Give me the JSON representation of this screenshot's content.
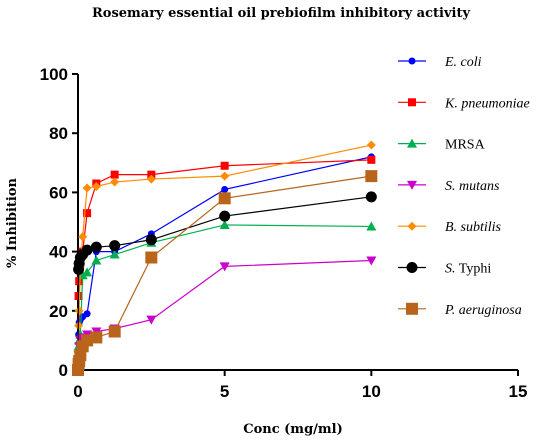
{
  "chart_data": {
    "type": "line",
    "title": "Rosemary essential oil prebiofilm inhibitory activity",
    "xlabel": "Conc (mg/ml)",
    "ylabel": "% Inhibition",
    "xlim": [
      0,
      15
    ],
    "ylim": [
      0,
      100
    ],
    "xticks": [
      0,
      5,
      10,
      15
    ],
    "yticks": [
      0,
      20,
      40,
      60,
      80,
      100
    ],
    "grid": false,
    "legend_position": "right",
    "series": [
      {
        "name": "E. coli",
        "name_parts": [
          {
            "text": "E. coli",
            "italic": true
          }
        ],
        "color": "#0000ff",
        "marker": "circle",
        "x": [
          0,
          0.02,
          0.04,
          0.08,
          0.16,
          0.31,
          0.625,
          1.25,
          2.5,
          5,
          10
        ],
        "y": [
          0,
          12,
          16,
          17,
          18,
          19,
          40,
          40,
          46,
          61,
          72
        ]
      },
      {
        "name": "K. pneumoniae",
        "name_parts": [
          {
            "text": "K. pneumoniae",
            "italic": true
          }
        ],
        "color": "#ff0000",
        "marker": "square",
        "x": [
          0,
          0.02,
          0.04,
          0.08,
          0.16,
          0.31,
          0.625,
          1.25,
          2.5,
          5,
          10
        ],
        "y": [
          0,
          25,
          30,
          38,
          40,
          53,
          63,
          66,
          66,
          69,
          71
        ]
      },
      {
        "name": "MRSA",
        "name_parts": [
          {
            "text": "MRSA",
            "italic": false
          }
        ],
        "color": "#00b050",
        "marker": "triangle-up",
        "x": [
          0,
          0.02,
          0.04,
          0.08,
          0.16,
          0.31,
          0.625,
          1.25,
          2.5,
          5,
          10
        ],
        "y": [
          0,
          8,
          10,
          12,
          32,
          33,
          37,
          39,
          43,
          49,
          48.5
        ]
      },
      {
        "name": "S. mutans",
        "name_parts": [
          {
            "text": "S. mutans",
            "italic": true
          }
        ],
        "color": "#cc00cc",
        "marker": "triangle-down",
        "x": [
          0,
          0.02,
          0.04,
          0.08,
          0.16,
          0.31,
          0.625,
          1.25,
          2.5,
          5,
          10
        ],
        "y": [
          0,
          5,
          8,
          10,
          11,
          12,
          13,
          14,
          17,
          35,
          37
        ]
      },
      {
        "name": "B. subtilis",
        "name_parts": [
          {
            "text": "B. subtilis",
            "italic": true
          }
        ],
        "color": "#ff8c00",
        "marker": "diamond",
        "x": [
          0,
          0.02,
          0.04,
          0.08,
          0.16,
          0.31,
          0.625,
          1.25,
          2.5,
          5,
          10
        ],
        "y": [
          2,
          15,
          20,
          35,
          45,
          61.5,
          62,
          63.5,
          64.5,
          65.5,
          76
        ]
      },
      {
        "name": "S. Typhi",
        "name_parts": [
          {
            "text": "S.",
            "italic": true
          },
          {
            "text": " Typhi",
            "italic": false
          }
        ],
        "color": "#000000",
        "marker": "circle-large",
        "x": [
          0,
          0.02,
          0.04,
          0.08,
          0.16,
          0.31,
          0.625,
          1.25,
          2.5,
          5,
          10
        ],
        "y": [
          0,
          34,
          36,
          38,
          39,
          40.5,
          41.5,
          42,
          44,
          52,
          58.5
        ]
      },
      {
        "name": "P. aeruginosa",
        "name_parts": [
          {
            "text": "P. aeruginosa",
            "italic": true
          }
        ],
        "color": "#b8651b",
        "marker": "square-large",
        "x": [
          0,
          0.02,
          0.04,
          0.08,
          0.16,
          0.31,
          0.625,
          1.25,
          2.5,
          5,
          10
        ],
        "y": [
          0,
          2,
          3,
          5,
          8,
          10,
          11,
          13,
          38,
          58,
          65.5
        ]
      }
    ]
  }
}
